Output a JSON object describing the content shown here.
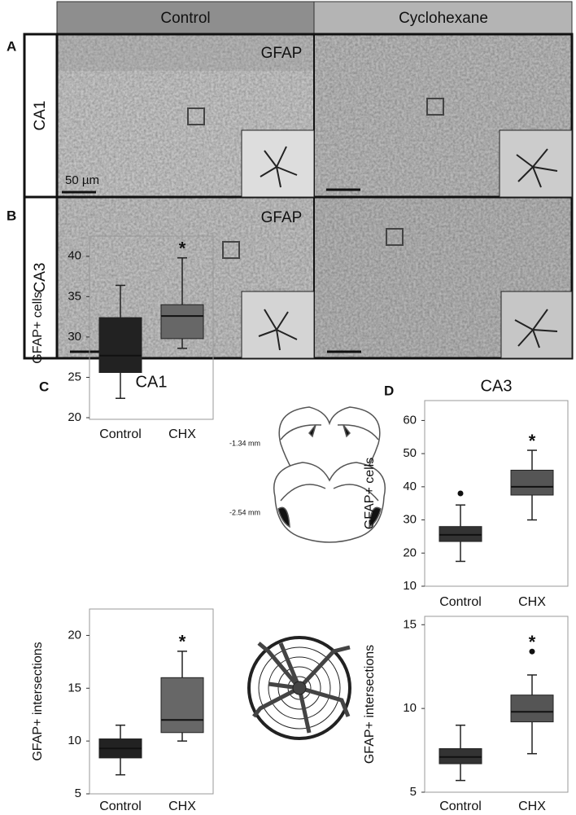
{
  "micrographs": {
    "columns": [
      "Control",
      "Cyclohexane"
    ],
    "rows": [
      {
        "panel": "A",
        "region": "CA1",
        "stain": "GFAP",
        "scale": "50 µm"
      },
      {
        "panel": "B",
        "region": "CA3",
        "stain": "GFAP"
      }
    ],
    "sections": [
      "-1.34 mm",
      "-2.54 mm"
    ]
  },
  "chart_data": [
    {
      "type": "box",
      "panel": "C",
      "title": "CA1",
      "y_label": "GFAP+ cells",
      "categories": [
        "Control",
        "CHX"
      ],
      "colors": [
        "#222222",
        "#676767"
      ],
      "boxes": [
        {
          "min": 22.4,
          "q1": 25.6,
          "median": 27.7,
          "q3": 32.4,
          "max": 36.4
        },
        {
          "min": 28.6,
          "q1": 29.8,
          "median": 32.6,
          "q3": 34.0,
          "max": 39.8
        }
      ],
      "significance": "*",
      "ylim": [
        19.8,
        42.5
      ],
      "yticks": [
        20,
        25,
        30,
        35,
        40
      ]
    },
    {
      "type": "box",
      "y_label": "GFAP+ intersections",
      "categories": [
        "Control",
        "CHX"
      ],
      "colors": [
        "#222222",
        "#676767"
      ],
      "boxes": [
        {
          "min": 6.8,
          "q1": 8.4,
          "median": 9.3,
          "q3": 10.2,
          "max": 11.5
        },
        {
          "min": 10.0,
          "q1": 10.8,
          "median": 12.0,
          "q3": 16.0,
          "max": 18.5
        }
      ],
      "significance": "*",
      "ylim": [
        5,
        22.5
      ],
      "yticks": [
        5,
        10,
        15,
        20
      ]
    },
    {
      "type": "box",
      "panel": "D",
      "title": "CA3",
      "y_label": "GFAP+ cells",
      "categories": [
        "Control",
        "CHX"
      ],
      "colors": [
        "#333333",
        "#555555"
      ],
      "boxes": [
        {
          "min": 17.5,
          "q1": 23.5,
          "median": 25.5,
          "q3": 28.0,
          "max": 34.5,
          "outliers": [
            38
          ]
        },
        {
          "min": 30.0,
          "q1": 37.5,
          "median": 40.0,
          "q3": 45.0,
          "max": 51.0
        }
      ],
      "significance": "*",
      "ylim": [
        10,
        66
      ],
      "yticks": [
        10,
        20,
        30,
        40,
        50,
        60
      ]
    },
    {
      "type": "box",
      "y_label": "GFAP+ intersections",
      "categories": [
        "Control",
        "CHX"
      ],
      "colors": [
        "#333333",
        "#555555"
      ],
      "boxes": [
        {
          "min": 5.7,
          "q1": 6.7,
          "median": 7.1,
          "q3": 7.6,
          "max": 9.0
        },
        {
          "min": 7.3,
          "q1": 9.2,
          "median": 9.8,
          "q3": 10.8,
          "max": 12.0,
          "outliers": [
            13.4
          ]
        }
      ],
      "significance": "*",
      "ylim": [
        5,
        15.5
      ],
      "yticks": [
        5,
        10,
        15
      ]
    }
  ]
}
